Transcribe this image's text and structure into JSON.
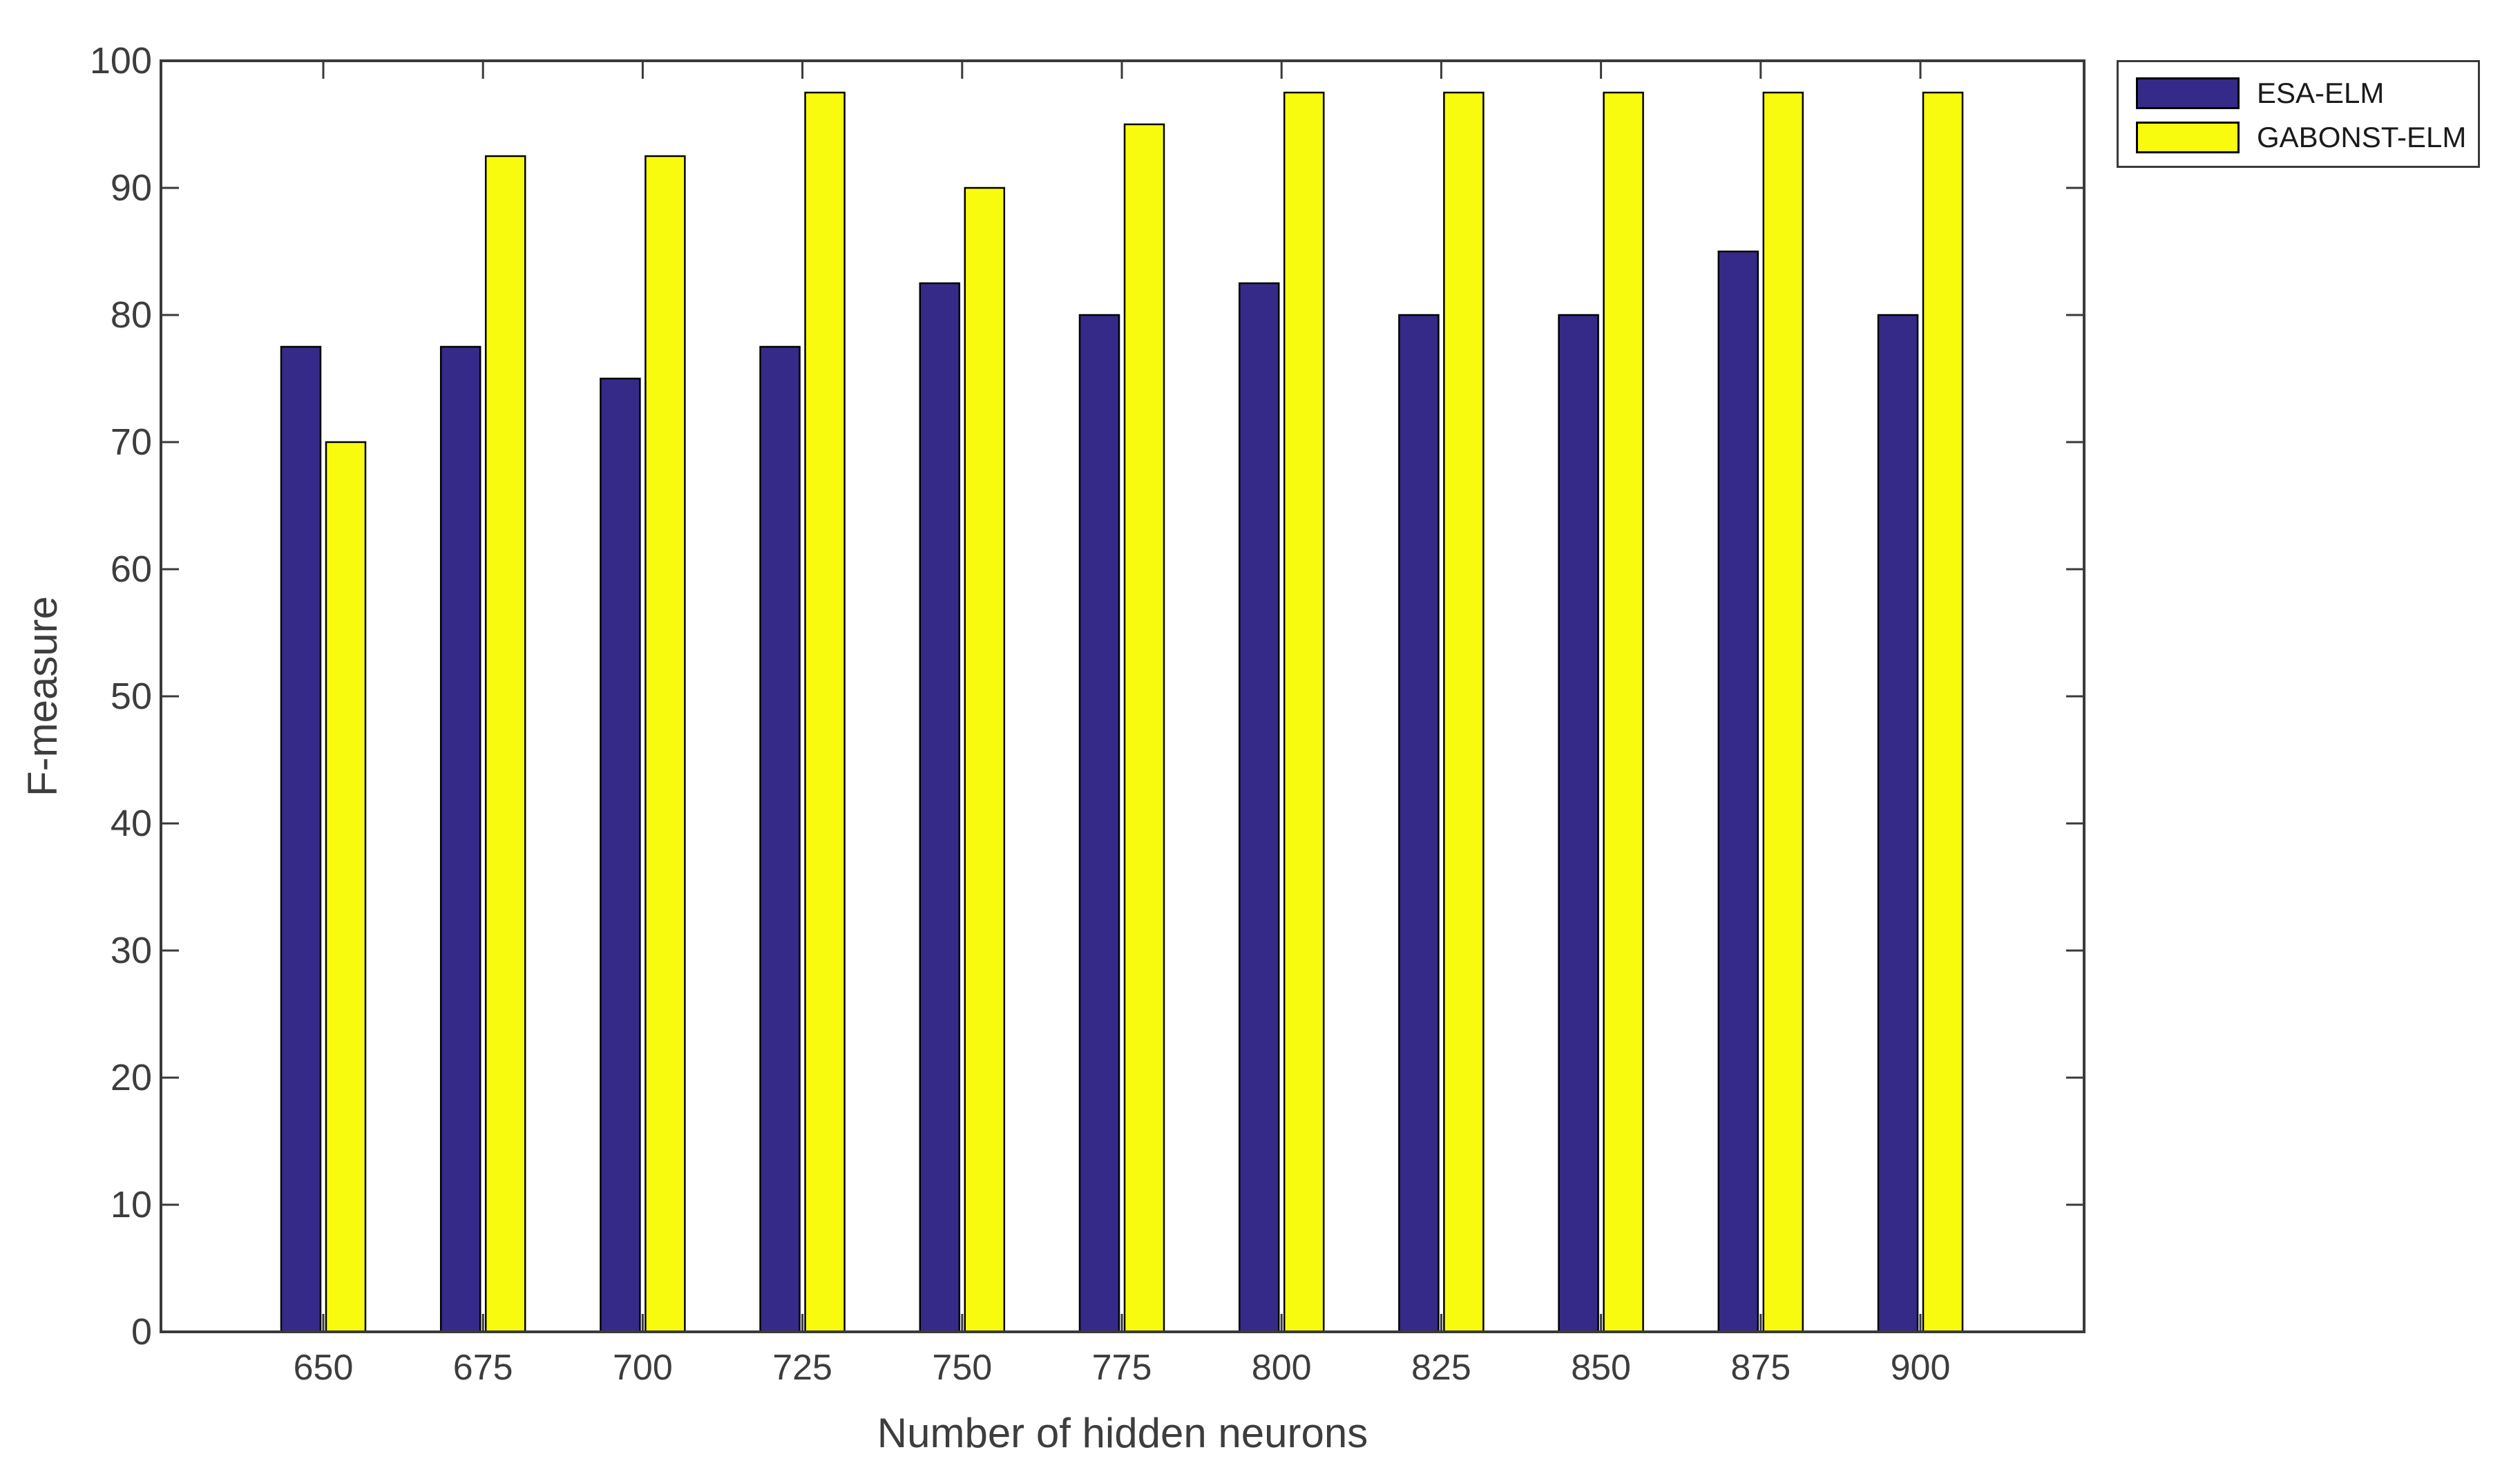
{
  "chart_data": {
    "type": "bar",
    "title": "",
    "xlabel": "Number of hidden neurons",
    "ylabel": "F-measure",
    "categories": [
      650,
      675,
      700,
      725,
      750,
      775,
      800,
      825,
      850,
      875,
      900
    ],
    "series": [
      {
        "name": "ESA-ELM",
        "color": "#352A87",
        "values": [
          77.5,
          77.5,
          75,
          77.5,
          82.5,
          80,
          82.5,
          80,
          80,
          85,
          80
        ]
      },
      {
        "name": "GABONST-ELM",
        "color": "#F9FB0E",
        "values": [
          70,
          92.5,
          92.5,
          97.5,
          90,
          95,
          97.5,
          97.5,
          97.5,
          97.5,
          97.5
        ]
      }
    ],
    "ylim": [
      0,
      100
    ],
    "yticks": [
      0,
      10,
      20,
      30,
      40,
      50,
      60,
      70,
      80,
      90,
      100
    ],
    "grid": false,
    "legend_position": "outside-top-right",
    "bar_edge_color": "#000000",
    "axis_color": "#3a3a3a"
  }
}
